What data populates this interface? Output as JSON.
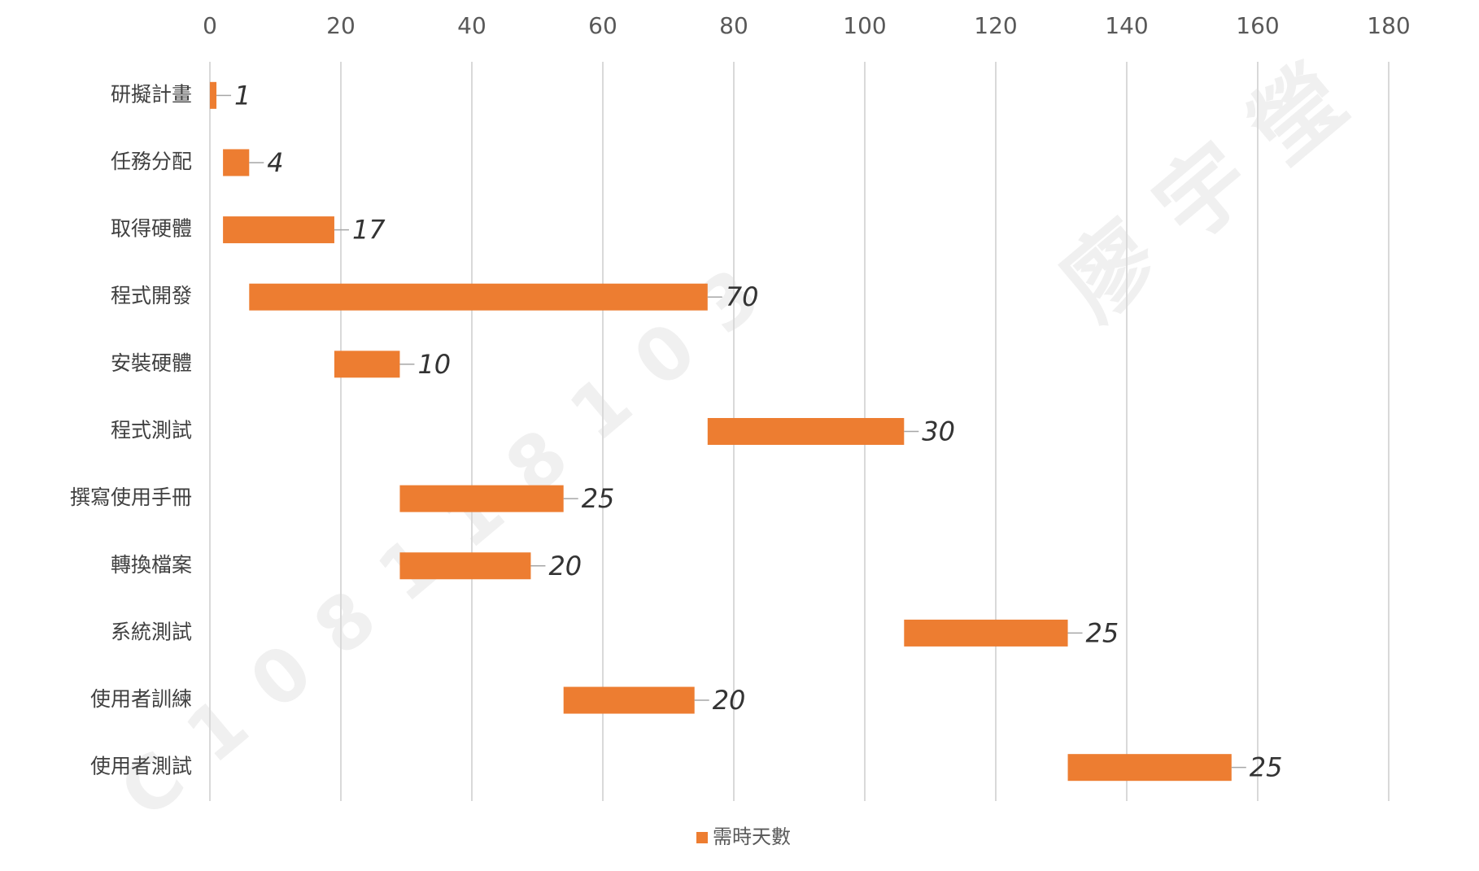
{
  "chart_data": {
    "type": "gantt",
    "categories": [
      "研擬計畫",
      "任務分配",
      "取得硬體",
      "程式開發",
      "安裝硬體",
      "程式測試",
      "撰寫使用手冊",
      "轉換檔案",
      "系統測試",
      "使用者訓練",
      "使用者測試"
    ],
    "series": [
      {
        "color": "none",
        "values": [
          0,
          2,
          2,
          6,
          19,
          76,
          29,
          29,
          106,
          54,
          131
        ]
      },
      {
        "name": "需時天數",
        "color": "#ed7d31",
        "values": [
          1,
          4,
          17,
          70,
          10,
          30,
          25,
          20,
          25,
          20,
          25
        ]
      }
    ],
    "xlim": [
      0,
      180
    ],
    "xticks": [
      0,
      20,
      40,
      60,
      80,
      100,
      120,
      140,
      160,
      180
    ],
    "grid": true,
    "legend": "bottom",
    "watermark": [
      "C108118103",
      "廖宇瑩"
    ]
  }
}
